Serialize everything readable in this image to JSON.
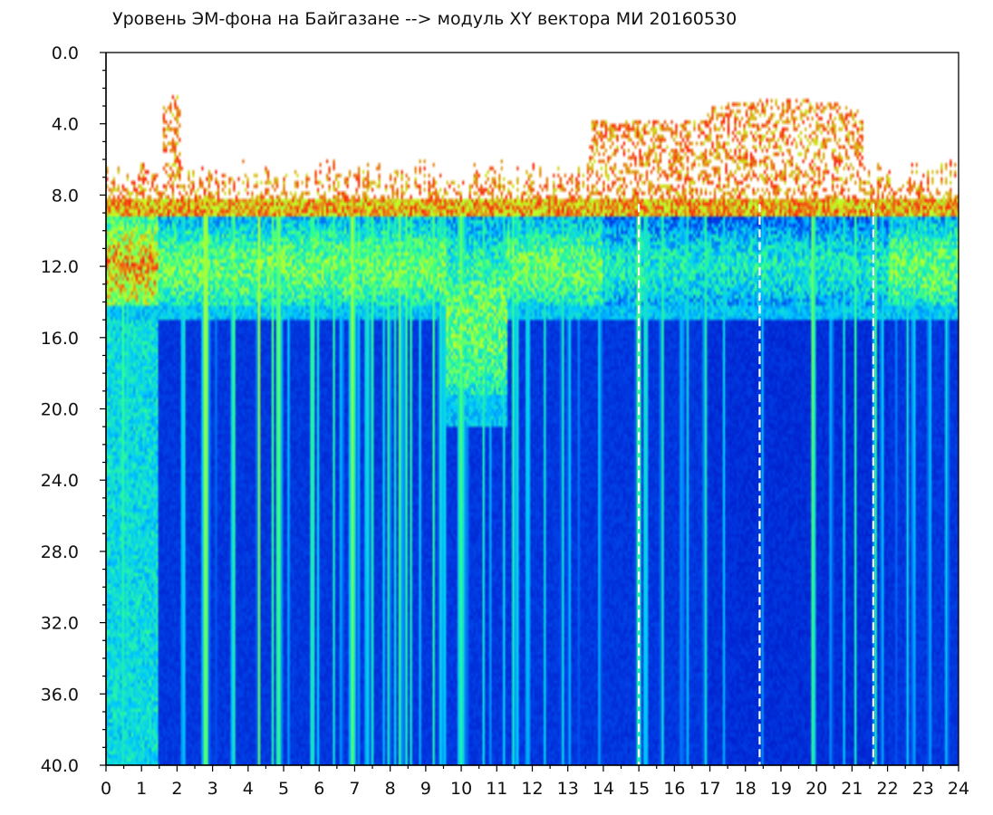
{
  "chart_data": {
    "type": "heatmap",
    "title": "Уровень ЭМ-фона на Байгазане  -->  модуль XY вектора МИ  20160530",
    "x": {
      "min": 0,
      "max": 24,
      "ticks": [
        0,
        1,
        2,
        3,
        4,
        5,
        6,
        7,
        8,
        9,
        10,
        11,
        12,
        13,
        14,
        15,
        16,
        17,
        18,
        19,
        20,
        21,
        22,
        23,
        24
      ],
      "tick_labels": [
        "0",
        "1",
        "2",
        "3",
        "4",
        "5",
        "6",
        "7",
        "8",
        "9",
        "10",
        "11",
        "12",
        "13",
        "14",
        "15",
        "16",
        "17",
        "18",
        "19",
        "20",
        "21",
        "22",
        "23",
        "24"
      ],
      "minor_step": 0.5
    },
    "y": {
      "min": 0,
      "max": 40,
      "inverted": true,
      "ticks": [
        0,
        4,
        8,
        12,
        16,
        20,
        24,
        28,
        32,
        36,
        40
      ],
      "tick_labels": [
        "0.0",
        "4.0",
        "8.0",
        "12.0",
        "16.0",
        "20.0",
        "24.0",
        "28.0",
        "32.0",
        "36.0",
        "40.0"
      ],
      "minor_step": 1
    },
    "colormap": [
      "#0018c8",
      "#0050f0",
      "#00c8ff",
      "#30ff90",
      "#c8ff20",
      "#ff2010"
    ],
    "grid": false,
    "legend": "none",
    "description_levels": {
      "lower_band": "high magnitude (red/yellow) from about 0 to 15",
      "upper_band": "sparse red speckle from about 2.5 to 8, strongest at x 17-21",
      "dashed_markers_x": [
        15,
        18.4,
        21.6
      ]
    }
  }
}
